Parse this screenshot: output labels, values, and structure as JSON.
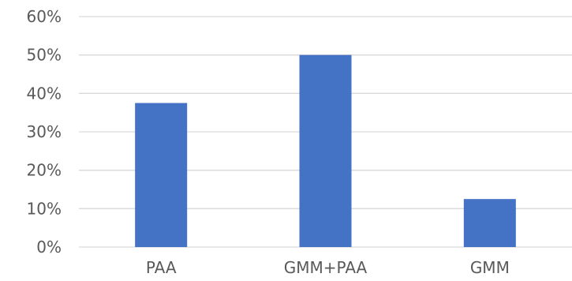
{
  "chart_data": {
    "type": "bar",
    "categories": [
      "PAA",
      "GMM+PAA",
      "GMM"
    ],
    "values": [
      37.5,
      50,
      12.5
    ],
    "ylim": [
      0,
      60
    ],
    "yticks": [
      0,
      10,
      20,
      30,
      40,
      50,
      60
    ],
    "ytick_labels": [
      "0%",
      "10%",
      "20%",
      "30%",
      "40%",
      "50%",
      "60%"
    ],
    "grid": true,
    "bar_color": "#4472c4",
    "grid_color": "#d9d9d9",
    "label_color": "#595959"
  }
}
